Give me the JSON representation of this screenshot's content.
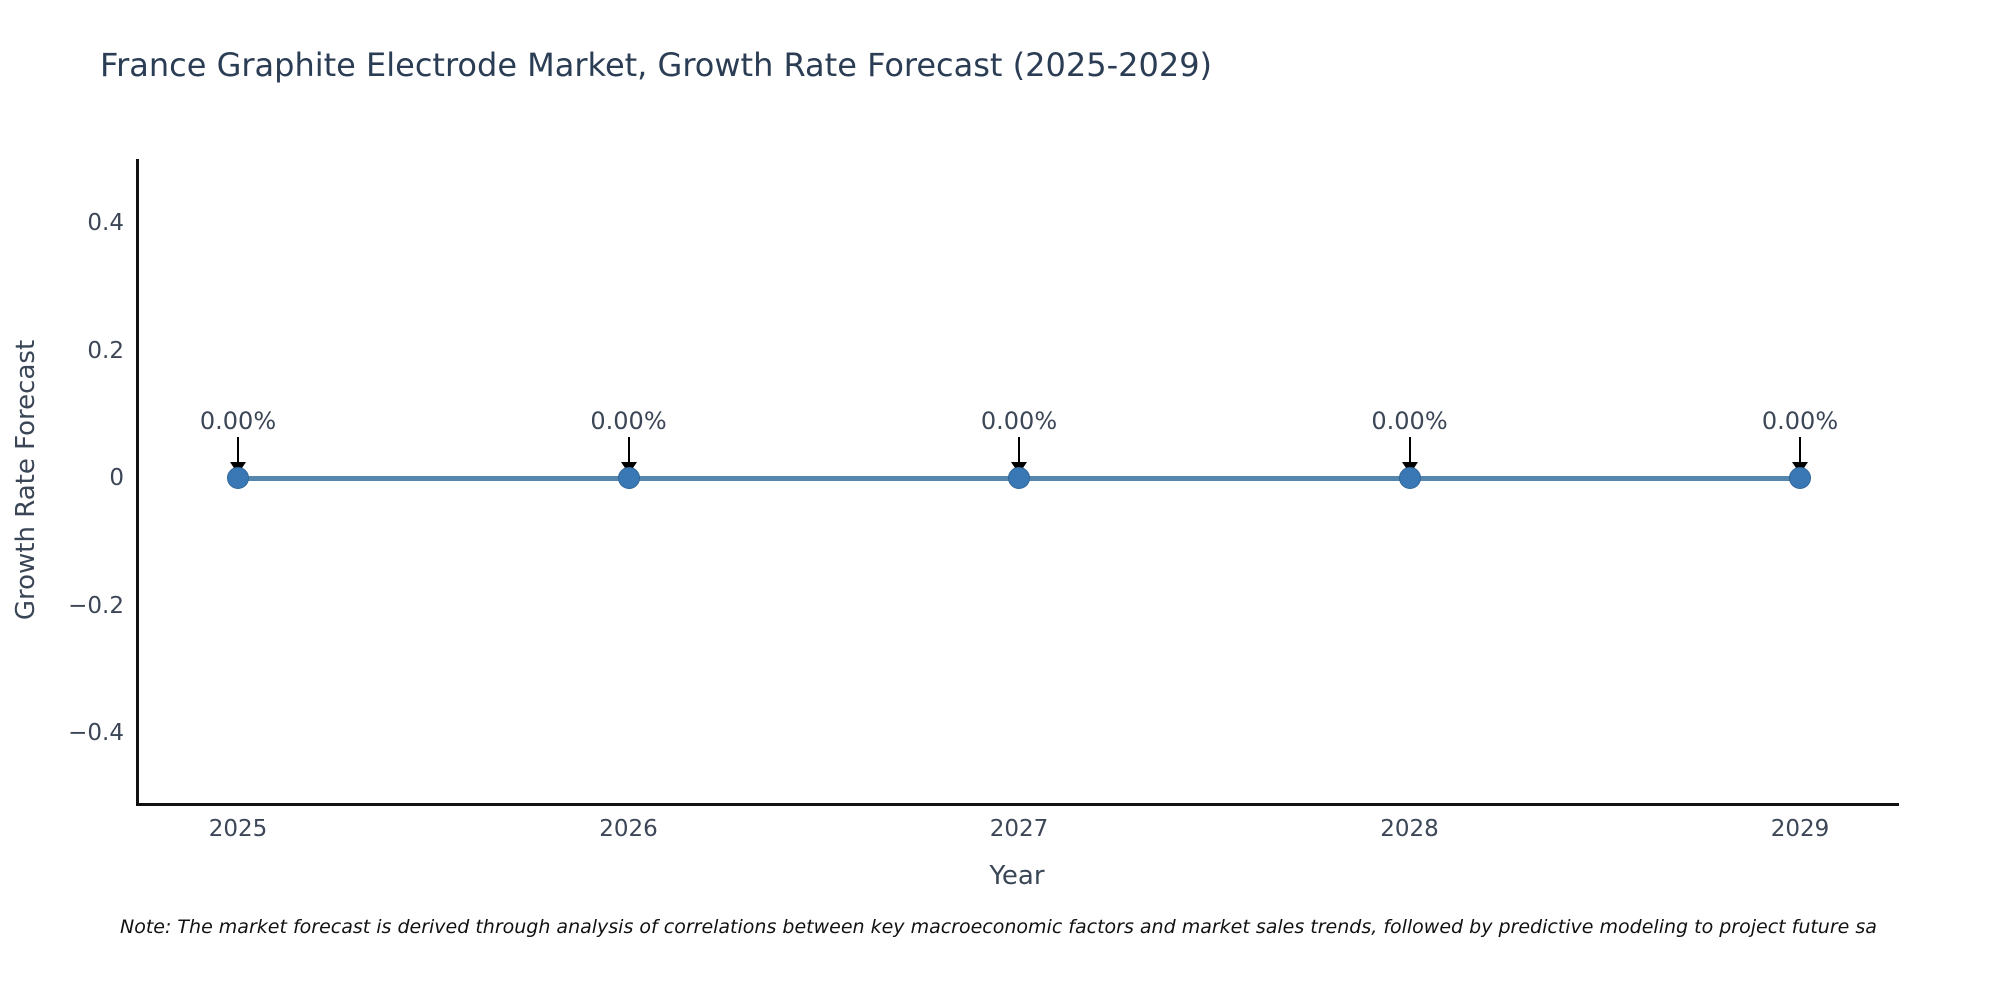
{
  "title": {
    "text": "France Graphite Electrode Market, Growth Rate Forecast (2025-2029)",
    "color": "#2b3d54"
  },
  "note": {
    "text": "Note: The market forecast is derived through analysis of correlations between key macroeconomic factors and market sales trends, followed by predictive modeling to project future sa"
  },
  "chart_data": {
    "type": "line",
    "title": "France Graphite Electrode Market, Growth Rate Forecast (2025-2029)",
    "x": [
      2025,
      2026,
      2027,
      2028,
      2029
    ],
    "xtick_labels": [
      "2025",
      "2026",
      "2027",
      "2028",
      "2029"
    ],
    "series": [
      {
        "name": "Growth Rate Forecast",
        "values": [
          0,
          0,
          0,
          0,
          0
        ]
      }
    ],
    "point_labels": [
      "0.00%",
      "0.00%",
      "0.00%",
      "0.00%",
      "0.00%"
    ],
    "xlabel": "Year",
    "ylabel": "Growth Rate Forecast",
    "ytick_values": [
      0.4,
      0.2,
      0,
      -0.2,
      -0.4
    ],
    "ytick_labels": [
      "0.4",
      "0.2",
      "0",
      "−0.2",
      "−0.4"
    ],
    "ylim": [
      -0.5,
      0.5
    ],
    "grid": false,
    "legend": false,
    "annotation_style": "each point labeled with downward black arrow",
    "colors": {
      "line": "#5486ae",
      "marker": "#3a78b5",
      "marker_edge": "#2f6699",
      "arrow": "#000000",
      "axis": "#111111"
    }
  }
}
